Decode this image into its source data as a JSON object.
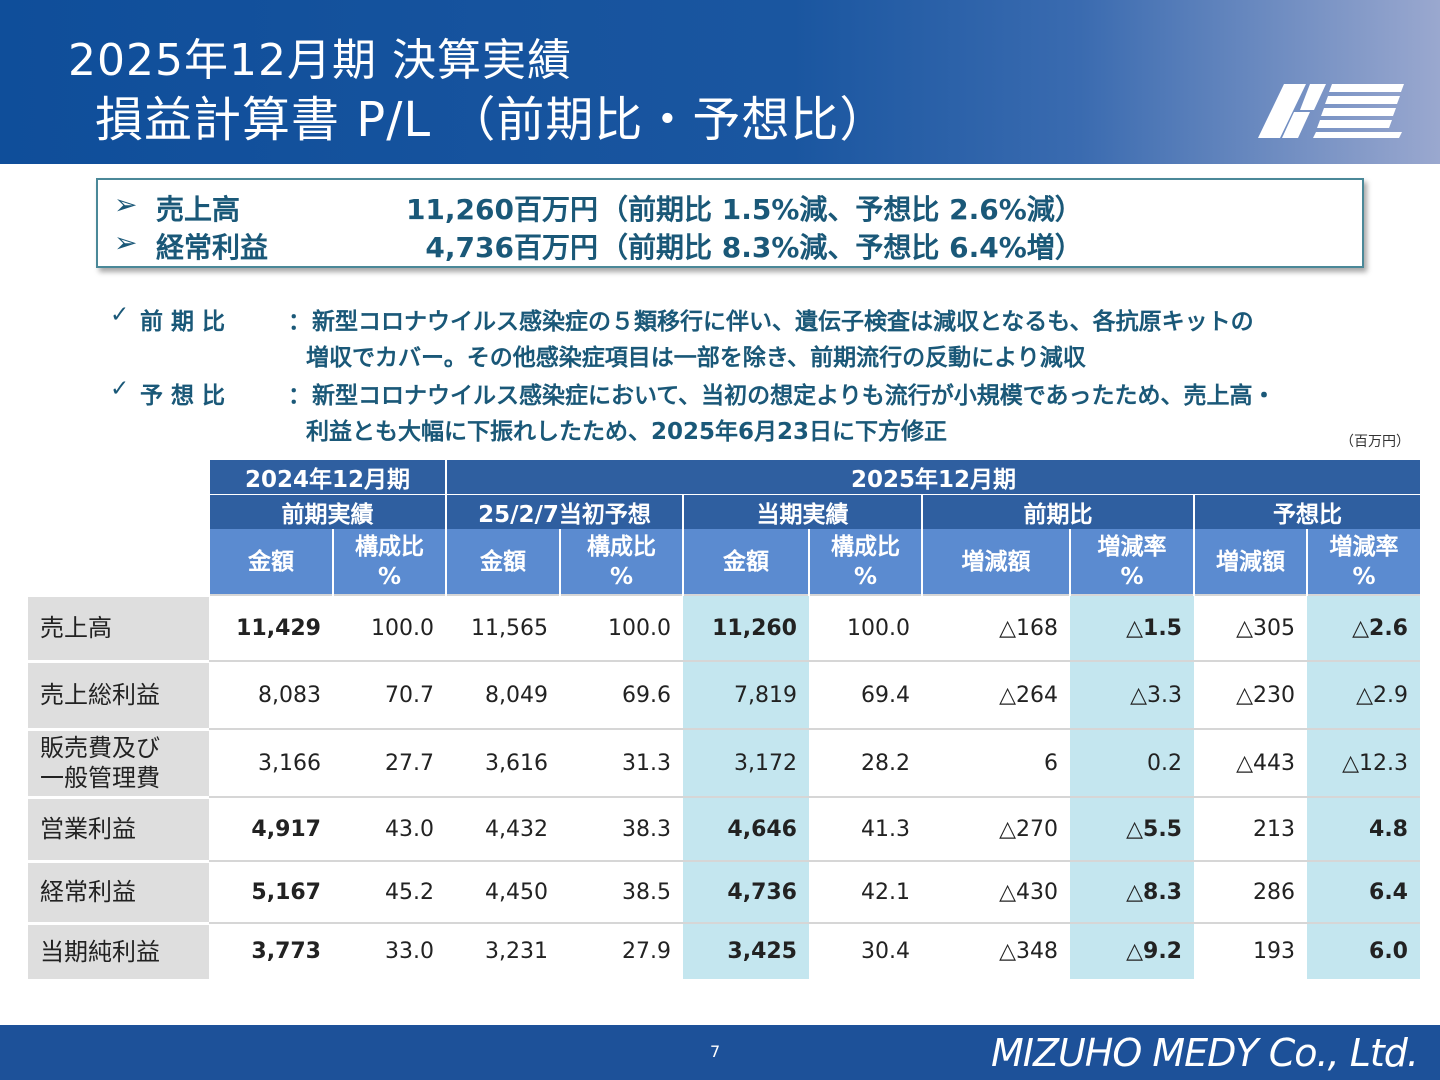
{
  "header": {
    "title_line1": "2025年12月期 決算実績",
    "title_line2": "損益計算書 P/L （前期比・予想比）",
    "logo_icon": "mizuho-medy-logo-icon",
    "colors": {
      "header_blue": "#0f4e9a",
      "accent_teal": "#1a5878"
    }
  },
  "summary": [
    {
      "mark": "➢",
      "label": "売上高",
      "value": "11,260百万円",
      "comparison": "（前期比 1.5%減、予想比 2.6%減）"
    },
    {
      "mark": "➢",
      "label": "経常利益",
      "value": "4,736百万円",
      "comparison": "（前期比 8.3%減、予想比 6.4%増）"
    }
  ],
  "notes": [
    {
      "check": "✓",
      "label": "前期比",
      "colon": "：",
      "line1": "新型コロナウイルス感染症の５類移行に伴い、遺伝子検査は減収となるも、各抗原キットの",
      "line2": "増収でカバー。その他感染症項目は一部を除き、前期流行の反動により減収"
    },
    {
      "check": "✓",
      "label": "予想比",
      "colon": "：",
      "line1": "新型コロナウイルス感染症において、当初の想定よりも流行が小規模であったため、売上高・",
      "line2": "利益とも大幅に下振れしたため、2025年6月23日に下方修正"
    }
  ],
  "unit": "（百万円）",
  "table": {
    "period_headers": [
      "2024年12月期",
      "2025年12月期"
    ],
    "group_headers": [
      "前期実績",
      "25/2/7当初予想",
      "当期実績",
      "前期比",
      "予想比"
    ],
    "column_headers": [
      "金額",
      "構成比\n%",
      "金額",
      "構成比\n%",
      "金額",
      "構成比\n%",
      "増減額",
      "増減率\n%",
      "増減額",
      "増減率\n%"
    ],
    "rows": [
      {
        "label": "売上高",
        "cells": [
          "11,429",
          "100.0",
          "11,565",
          "100.0",
          "11,260",
          "100.0",
          "△168",
          "△1.5",
          "△305",
          "△2.6"
        ],
        "bold": true
      },
      {
        "label": "売上総利益",
        "cells": [
          "8,083",
          "70.7",
          "8,049",
          "69.6",
          "7,819",
          "69.4",
          "△264",
          "△3.3",
          "△230",
          "△2.9"
        ],
        "bold": false
      },
      {
        "label": "販売費及び\n一般管理費",
        "cells": [
          "3,166",
          "27.7",
          "3,616",
          "31.3",
          "3,172",
          "28.2",
          "6",
          "0.2",
          "△443",
          "△12.3"
        ],
        "bold": false
      },
      {
        "label": "営業利益",
        "cells": [
          "4,917",
          "43.0",
          "4,432",
          "38.3",
          "4,646",
          "41.3",
          "△270",
          "△5.5",
          "213",
          "4.8"
        ],
        "bold": true
      },
      {
        "label": "経常利益",
        "cells": [
          "5,167",
          "45.2",
          "4,450",
          "38.5",
          "4,736",
          "42.1",
          "△430",
          "△8.3",
          "286",
          "6.4"
        ],
        "bold": true
      },
      {
        "label": "当期純利益",
        "cells": [
          "3,773",
          "33.0",
          "3,231",
          "27.9",
          "3,425",
          "30.4",
          "△348",
          "△9.2",
          "193",
          "6.0"
        ],
        "bold": true
      }
    ]
  },
  "footer": {
    "page_number": "7",
    "company": "MIZUHO MEDY Co., Ltd."
  }
}
